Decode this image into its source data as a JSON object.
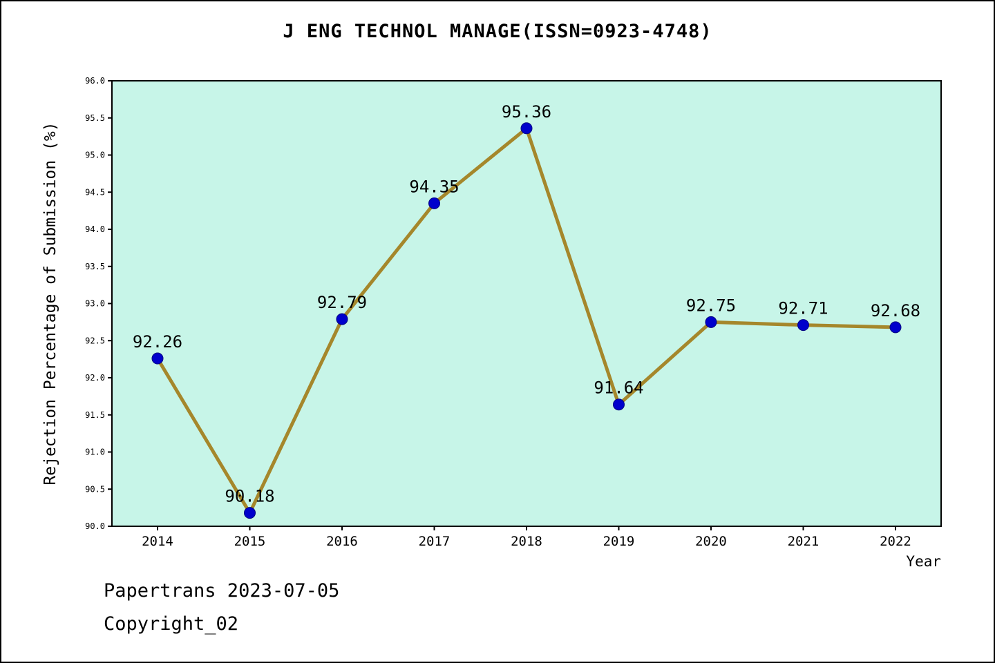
{
  "title": "J ENG TECHNOL MANAGE(ISSN=0923-4748)",
  "footer": {
    "line1": "Papertrans 2023-07-05",
    "line2": "Copyright_02"
  },
  "chart_data": {
    "type": "line",
    "title": "J ENG TECHNOL MANAGE(ISSN=0923-4748)",
    "x": [
      2014,
      2015,
      2016,
      2017,
      2018,
      2019,
      2020,
      2021,
      2022
    ],
    "values": [
      92.26,
      90.18,
      92.79,
      94.35,
      95.36,
      91.64,
      92.75,
      92.71,
      92.68
    ],
    "xlabel": "Year",
    "ylabel": "Rejection Percentage of Submission (%)",
    "ylim": [
      90.0,
      96.0
    ],
    "ytick_step": 0.5,
    "grid": false,
    "legend": "none",
    "colors": {
      "line": "#a5872b",
      "marker": "#0000cc",
      "plot_bg": "#c7f5e8",
      "page_bg": "#ffffff",
      "axis": "#000000",
      "text": "#000000"
    }
  }
}
